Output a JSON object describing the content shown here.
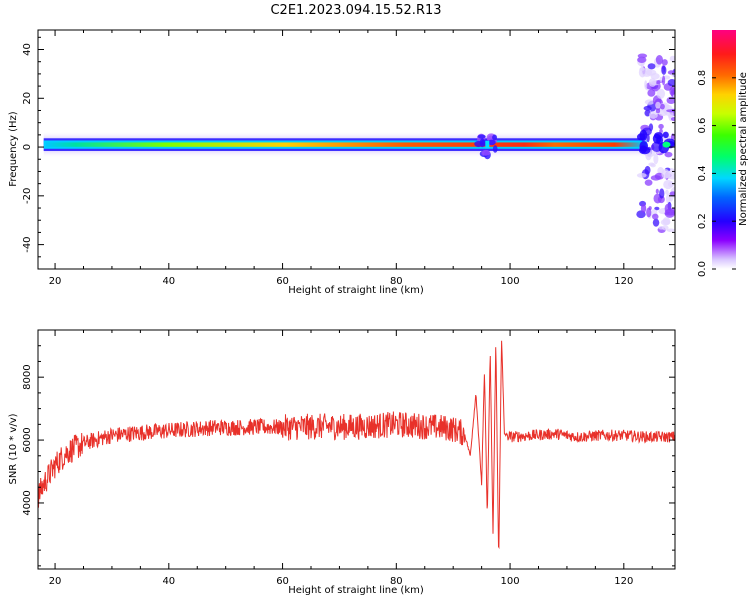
{
  "title": "C2E1.2023.094.15.52.R13",
  "colors": {
    "snr_line": "#e8312a",
    "axes": "#000000",
    "background": "#ffffff"
  },
  "chart_data": [
    {
      "type": "heatmap",
      "xlabel": "Height of straight line (km)",
      "ylabel": "Frequency (Hz)",
      "xlim": [
        17,
        129
      ],
      "ylim": [
        -50,
        48
      ],
      "xticks": [
        20,
        40,
        60,
        80,
        100,
        120
      ],
      "yticks": [
        -40,
        -20,
        0,
        20,
        40
      ],
      "colorbar": {
        "label": "Normalized spectral amplitude",
        "range": [
          0,
          1
        ],
        "ticks": [
          "0.0",
          "0.2",
          "0.4",
          "0.6",
          "0.8"
        ],
        "colormap": "gist_rainbow_r"
      },
      "band": {
        "center_frequency_hz": 1,
        "x_range_km": [
          18,
          124
        ],
        "peak_amplitude": 0.95,
        "disturbance_x_km": [
          94,
          98
        ],
        "scatter_region_x_km": [
          123,
          129
        ],
        "scatter_region_freq_hz": [
          -35,
          38
        ]
      }
    },
    {
      "type": "line",
      "xlabel": "Height of straight line (km)",
      "ylabel": "SNR (10 * v/v)",
      "xlim": [
        17,
        129
      ],
      "ylim": [
        1900,
        9500
      ],
      "xticks": [
        20,
        40,
        60,
        80,
        100,
        120
      ],
      "yticks": [
        4000,
        6000,
        8000
      ],
      "series": [
        {
          "x": [
            17,
            18,
            19,
            20,
            21,
            22,
            24,
            26,
            28,
            30,
            33,
            36,
            40,
            44,
            48,
            52,
            56,
            60,
            64,
            68,
            72,
            76,
            80,
            84,
            88,
            90,
            92,
            93,
            94,
            95,
            95.5,
            96,
            96.5,
            97,
            97.5,
            98,
            98.5,
            99,
            100,
            104,
            108,
            112,
            116,
            120,
            124,
            129
          ],
          "y": [
            4200,
            4600,
            4900,
            5200,
            5400,
            5600,
            5800,
            5950,
            6050,
            6150,
            6200,
            6250,
            6300,
            6350,
            6400,
            6400,
            6420,
            6400,
            6420,
            6430,
            6420,
            6450,
            6500,
            6450,
            6400,
            6350,
            6200,
            5500,
            7500,
            4600,
            8200,
            3500,
            8900,
            3000,
            9200,
            2000,
            9300,
            6200,
            6100,
            6150,
            6200,
            6100,
            6150,
            6150,
            6100,
            6100
          ]
        }
      ]
    }
  ]
}
